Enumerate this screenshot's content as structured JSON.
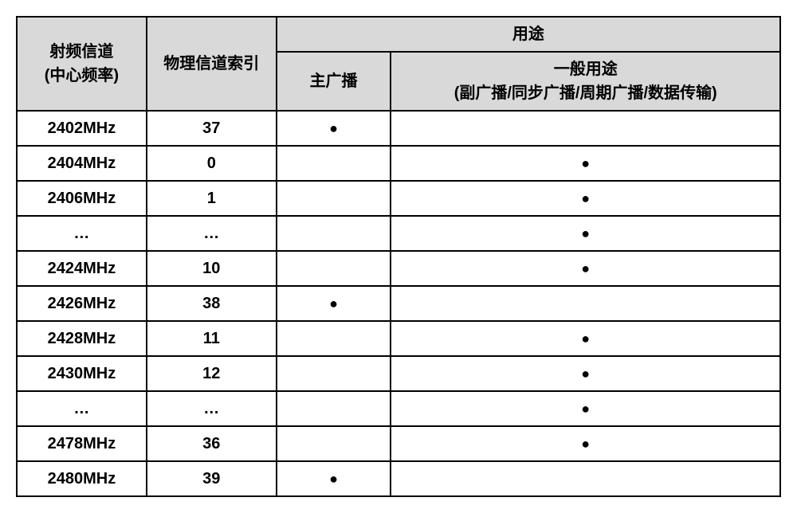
{
  "table": {
    "border_color": "#000000",
    "header_bg": "#d9d9d9",
    "body_bg": "#ffffff",
    "font_family": "Microsoft YaHei",
    "header_fontsize": 20,
    "cell_fontsize": 20,
    "dot_glyph": "●",
    "headers": {
      "freq_line1": "射频信道",
      "freq_line2": "(中心频率)",
      "index": "物理信道索引",
      "usage": "用途",
      "main_broadcast": "主广播",
      "general_line1": "一般用途",
      "general_line2": "(副广播/同步广播/周期广播/数据传输)"
    },
    "rows": [
      {
        "freq": "2402MHz",
        "index": "37",
        "main": "●",
        "general": ""
      },
      {
        "freq": "2404MHz",
        "index": "0",
        "main": "",
        "general": "●"
      },
      {
        "freq": "2406MHz",
        "index": "1",
        "main": "",
        "general": "●"
      },
      {
        "freq": "…",
        "index": "…",
        "main": "",
        "general": "●"
      },
      {
        "freq": "2424MHz",
        "index": "10",
        "main": "",
        "general": "●"
      },
      {
        "freq": "2426MHz",
        "index": "38",
        "main": "●",
        "general": ""
      },
      {
        "freq": "2428MHz",
        "index": "11",
        "main": "",
        "general": "●"
      },
      {
        "freq": "2430MHz",
        "index": "12",
        "main": "",
        "general": "●"
      },
      {
        "freq": "…",
        "index": "…",
        "main": "",
        "general": "●"
      },
      {
        "freq": "2478MHz",
        "index": "36",
        "main": "",
        "general": "●"
      },
      {
        "freq": "2480MHz",
        "index": "39",
        "main": "●",
        "general": ""
      }
    ]
  }
}
